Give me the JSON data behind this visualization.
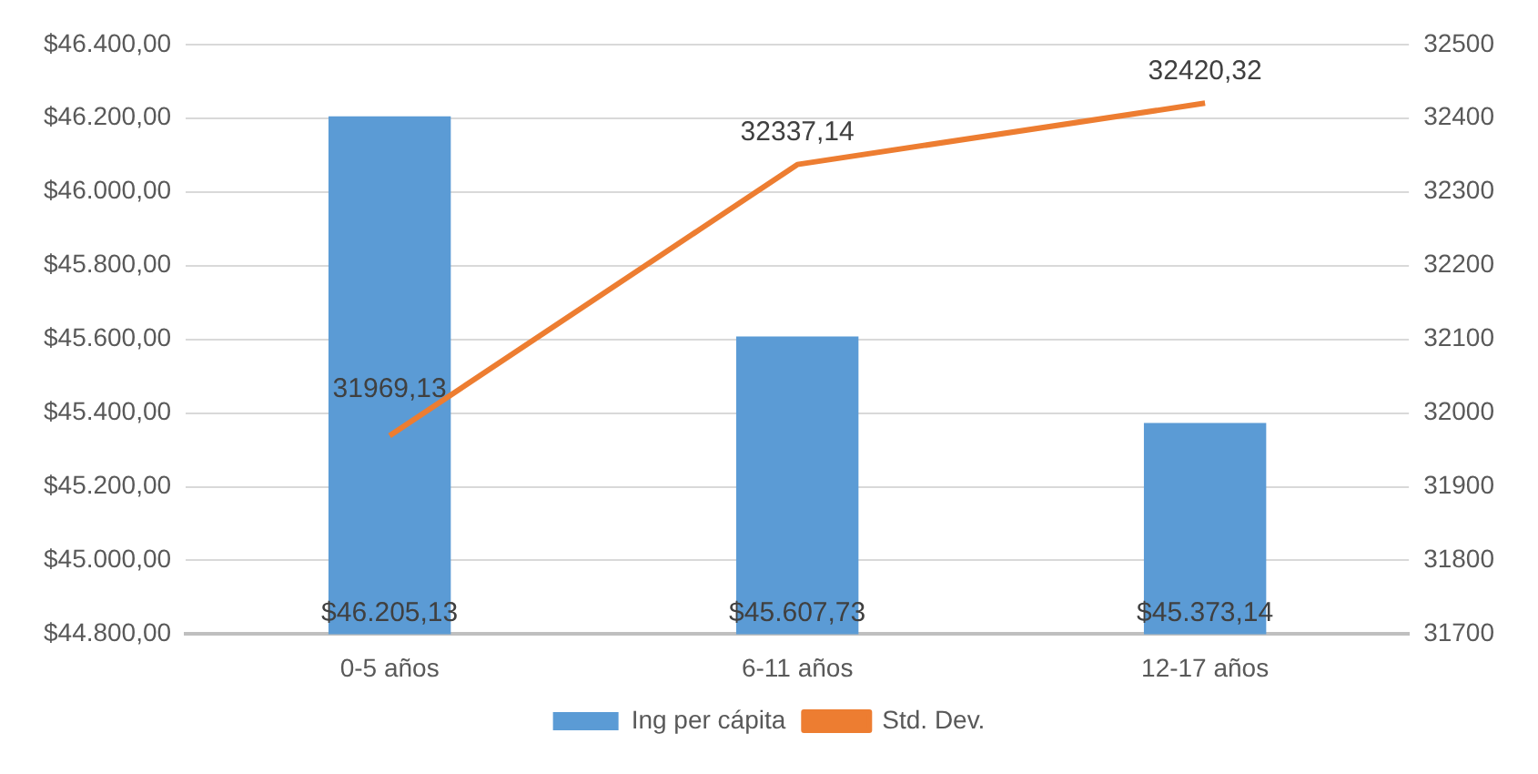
{
  "chart_data": {
    "type": "bar",
    "categories": [
      "0-5 años",
      "6-11 años",
      "12-17 años"
    ],
    "series": [
      {
        "name": "Ing per cápita",
        "color": "#5b9bd5",
        "values": [
          46205.13,
          45607.73,
          45373.14
        ],
        "value_labels": [
          "$46.205,13",
          "$45.607,73",
          "$45.373,14"
        ]
      },
      {
        "name": "Std. Dev.",
        "type": "line",
        "axis": "y2",
        "color": "#ed7d31",
        "marker": "none",
        "values": [
          31969.13,
          32337.14,
          32420.32
        ],
        "value_labels": [
          "31969,13",
          "32337,14",
          "32420,32"
        ]
      }
    ],
    "ylim": [
      44800,
      46400
    ],
    "yticks": [
      {
        "value": 44800,
        "label": "$44.800,00"
      },
      {
        "value": 45000,
        "label": "$45.000,00"
      },
      {
        "value": 45200,
        "label": "$45.200,00"
      },
      {
        "value": 45400,
        "label": "$45.400,00"
      },
      {
        "value": 45600,
        "label": "$45.600,00"
      },
      {
        "value": 45800,
        "label": "$45.800,00"
      },
      {
        "value": 46000,
        "label": "$46.000,00"
      },
      {
        "value": 46200,
        "label": "$46.200,00"
      },
      {
        "value": 46400,
        "label": "$46.400,00"
      }
    ],
    "y2lim": [
      31700,
      32500
    ],
    "y2ticks": [
      31700,
      31800,
      31900,
      32000,
      32100,
      32200,
      32300,
      32400,
      32500
    ],
    "grid": "y",
    "legend": "bottom"
  }
}
